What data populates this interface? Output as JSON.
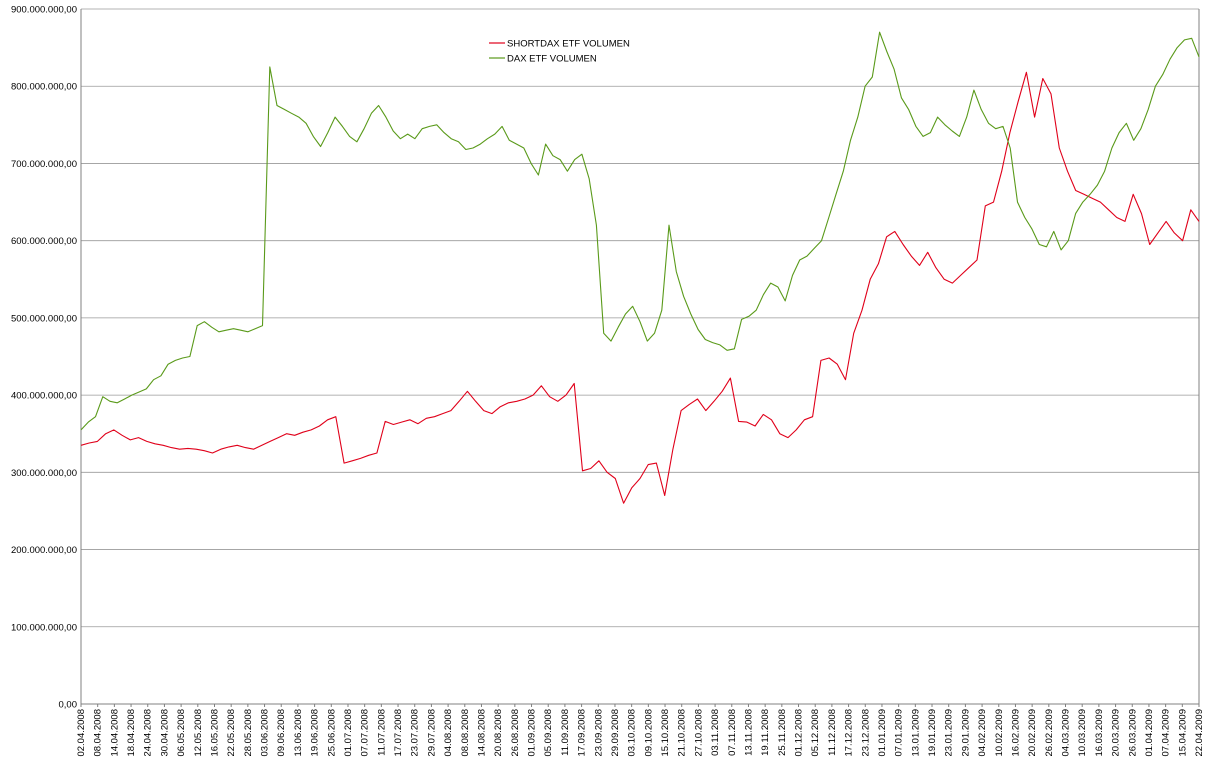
{
  "chart_data": {
    "type": "line",
    "title": "",
    "xlabel": "",
    "ylabel": "",
    "ylim": [
      0,
      900000000
    ],
    "y_tick_values": [
      0,
      100000000,
      200000000,
      300000000,
      400000000,
      500000000,
      600000000,
      700000000,
      800000000,
      900000000
    ],
    "y_tick_labels": [
      "0,00",
      "100.000.000,00",
      "200.000.000,00",
      "300.000.000,00",
      "400.000.000,00",
      "500.000.000,00",
      "600.000.000,00",
      "700.000.000,00",
      "800.000.000,00",
      "900.000.000,00"
    ],
    "x_tick_labels": [
      "02.04.2008",
      "08.04.2008",
      "14.04.2008",
      "18.04.2008",
      "24.04.2008",
      "30.04.2008",
      "06.05.2008",
      "12.05.2008",
      "16.05.2008",
      "22.05.2008",
      "28.05.2008",
      "03.06.2008",
      "09.06.2008",
      "13.06.2008",
      "19.06.2008",
      "25.06.2008",
      "01.07.2008",
      "07.07.2008",
      "11.07.2008",
      "17.07.2008",
      "23.07.2008",
      "29.07.2008",
      "04.08.2008",
      "08.08.2008",
      "14.08.2008",
      "20.08.2008",
      "26.08.2008",
      "01.09.2008",
      "05.09.2008",
      "11.09.2008",
      "17.09.2008",
      "23.09.2008",
      "29.09.2008",
      "03.10.2008",
      "09.10.2008",
      "15.10.2008",
      "21.10.2008",
      "27.10.2008",
      "03.11.2008",
      "07.11.2008",
      "13.11.2008",
      "19.11.2008",
      "25.11.2008",
      "01.12.2008",
      "05.12.2008",
      "11.12.2008",
      "17.12.2008",
      "23.12.2008",
      "01.01.2009",
      "07.01.2009",
      "13.01.2009",
      "19.01.2009",
      "23.01.2009",
      "29.01.2009",
      "04.02.2009",
      "10.02.2009",
      "16.02.2009",
      "20.02.2009",
      "26.02.2009",
      "04.03.2009",
      "10.03.2009",
      "16.03.2009",
      "20.03.2009",
      "26.03.2009",
      "01.04.2009",
      "07.04.2009",
      "15.04.2009",
      "22.04.2009"
    ],
    "grid": true,
    "legend_position": "top-center",
    "series": [
      {
        "name": "SHORTDAX ETF VOLUMEN",
        "color": "#e0001a",
        "values": [
          335000000,
          338000000,
          340000000,
          350000000,
          355000000,
          348000000,
          342000000,
          345000000,
          340000000,
          337000000,
          335000000,
          332000000,
          330000000,
          331000000,
          330000000,
          328000000,
          325000000,
          330000000,
          333000000,
          335000000,
          332000000,
          330000000,
          335000000,
          340000000,
          345000000,
          350000000,
          348000000,
          352000000,
          355000000,
          360000000,
          368000000,
          372000000,
          312000000,
          315000000,
          318000000,
          322000000,
          325000000,
          366000000,
          362000000,
          365000000,
          368000000,
          363000000,
          370000000,
          372000000,
          376000000,
          380000000,
          392000000,
          405000000,
          392000000,
          380000000,
          376000000,
          385000000,
          390000000,
          392000000,
          395000000,
          400000000,
          412000000,
          398000000,
          392000000,
          400000000,
          415000000,
          302000000,
          305000000,
          315000000,
          300000000,
          292000000,
          260000000,
          280000000,
          292000000,
          310000000,
          312000000,
          270000000,
          330000000,
          380000000,
          388000000,
          395000000,
          380000000,
          392000000,
          405000000,
          422000000,
          366000000,
          365000000,
          360000000,
          375000000,
          368000000,
          350000000,
          345000000,
          355000000,
          368000000,
          372000000,
          445000000,
          448000000,
          440000000,
          420000000,
          480000000,
          510000000,
          550000000,
          570000000,
          605000000,
          612000000,
          595000000,
          580000000,
          568000000,
          585000000,
          565000000,
          550000000,
          545000000,
          555000000,
          565000000,
          575000000,
          645000000,
          650000000,
          690000000,
          740000000,
          780000000,
          818000000,
          760000000,
          810000000,
          790000000,
          720000000,
          690000000,
          665000000,
          660000000,
          655000000,
          650000000,
          640000000,
          630000000,
          625000000,
          660000000,
          635000000,
          595000000,
          610000000,
          625000000,
          610000000,
          600000000,
          640000000,
          625000000
        ]
      },
      {
        "name": "DAX ETF VOLUMEN",
        "color": "#5a9a1a",
        "values": [
          355000000,
          365000000,
          372000000,
          398000000,
          392000000,
          390000000,
          395000000,
          400000000,
          404000000,
          408000000,
          420000000,
          425000000,
          440000000,
          445000000,
          448000000,
          450000000,
          490000000,
          495000000,
          488000000,
          482000000,
          484000000,
          486000000,
          484000000,
          482000000,
          486000000,
          490000000,
          825000000,
          775000000,
          770000000,
          765000000,
          760000000,
          752000000,
          735000000,
          722000000,
          740000000,
          760000000,
          748000000,
          735000000,
          728000000,
          745000000,
          765000000,
          775000000,
          760000000,
          742000000,
          732000000,
          738000000,
          732000000,
          745000000,
          748000000,
          750000000,
          740000000,
          732000000,
          728000000,
          718000000,
          720000000,
          725000000,
          732000000,
          738000000,
          748000000,
          730000000,
          725000000,
          720000000,
          700000000,
          685000000,
          725000000,
          710000000,
          705000000,
          690000000,
          705000000,
          712000000,
          680000000,
          620000000,
          480000000,
          470000000,
          488000000,
          505000000,
          515000000,
          495000000,
          470000000,
          480000000,
          510000000,
          620000000,
          560000000,
          528000000,
          505000000,
          485000000,
          472000000,
          468000000,
          465000000,
          458000000,
          460000000,
          498000000,
          502000000,
          510000000,
          530000000,
          545000000,
          540000000,
          522000000,
          555000000,
          575000000,
          580000000,
          590000000,
          600000000,
          630000000,
          660000000,
          690000000,
          730000000,
          760000000,
          800000000,
          812000000,
          870000000,
          845000000,
          822000000,
          785000000,
          770000000,
          748000000,
          735000000,
          740000000,
          760000000,
          750000000,
          742000000,
          735000000,
          760000000,
          795000000,
          770000000,
          752000000,
          745000000,
          748000000,
          720000000,
          650000000,
          630000000,
          615000000,
          595000000,
          592000000,
          612000000,
          588000000,
          600000000,
          635000000,
          650000000,
          660000000,
          672000000,
          690000000,
          720000000,
          740000000,
          752000000,
          730000000,
          745000000,
          770000000,
          800000000,
          815000000,
          835000000,
          850000000,
          860000000,
          862000000,
          838000000
        ]
      }
    ]
  }
}
